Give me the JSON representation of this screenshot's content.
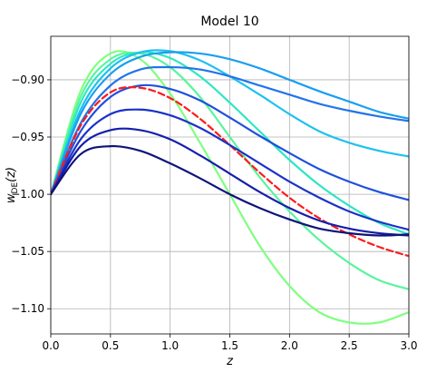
{
  "chart_data": {
    "type": "line",
    "title": "Model 10",
    "xlabel": "z",
    "ylabel_main": "w",
    "ylabel_sub": "DE",
    "ylabel_arg": "(z)",
    "xlim": [
      0.0,
      3.0
    ],
    "ylim": [
      -1.122,
      -0.862
    ],
    "grid": true,
    "x_ticks": [
      0.0,
      0.5,
      1.0,
      1.5,
      2.0,
      2.5,
      3.0
    ],
    "x_tick_labels": [
      "0.0",
      "0.5",
      "1.0",
      "1.5",
      "2.0",
      "2.5",
      "3.0"
    ],
    "y_ticks": [
      -0.9,
      -0.95,
      -1.0,
      -1.05,
      -1.1
    ],
    "y_tick_labels": [
      "−0.90",
      "−0.95",
      "−1.00",
      "−1.05",
      "−1.10"
    ],
    "x": [
      0.0,
      0.25,
      0.5,
      0.75,
      1.0,
      1.25,
      1.5,
      1.75,
      2.0,
      2.25,
      2.5,
      2.75,
      3.0
    ],
    "series": [
      {
        "color": "#7fff7f",
        "style": "solid",
        "values": [
          -1.0,
          -0.91,
          -0.877,
          -0.882,
          -0.912,
          -0.955,
          -1.0,
          -1.045,
          -1.08,
          -1.103,
          -1.112,
          -1.112,
          -1.103
        ]
      },
      {
        "color": "#58f59d",
        "style": "solid",
        "values": [
          -1.0,
          -0.915,
          -0.882,
          -0.877,
          -0.889,
          -0.915,
          -0.95,
          -0.985,
          -1.015,
          -1.04,
          -1.06,
          -1.075,
          -1.083
        ]
      },
      {
        "color": "#2ee6c4",
        "style": "solid",
        "values": [
          -1.0,
          -0.92,
          -0.886,
          -0.876,
          -0.881,
          -0.897,
          -0.92,
          -0.945,
          -0.97,
          -0.992,
          -1.01,
          -1.025,
          -1.035
        ]
      },
      {
        "color": "#1ec0f0",
        "style": "solid",
        "values": [
          -1.0,
          -0.926,
          -0.89,
          -0.876,
          -0.875,
          -0.883,
          -0.897,
          -0.913,
          -0.93,
          -0.945,
          -0.955,
          -0.962,
          -0.967
        ]
      },
      {
        "color": "#1a9ef0",
        "style": "solid",
        "values": [
          -1.0,
          -0.93,
          -0.895,
          -0.88,
          -0.876,
          -0.877,
          -0.882,
          -0.89,
          -0.9,
          -0.91,
          -0.919,
          -0.928,
          -0.934
        ]
      },
      {
        "color": "#2274ea",
        "style": "solid",
        "values": [
          -1.0,
          -0.938,
          -0.905,
          -0.891,
          -0.889,
          -0.891,
          -0.897,
          -0.905,
          -0.913,
          -0.921,
          -0.927,
          -0.932,
          -0.936
        ]
      },
      {
        "color": "#1e50dc",
        "style": "solid",
        "values": [
          -1.0,
          -0.945,
          -0.915,
          -0.905,
          -0.908,
          -0.918,
          -0.933,
          -0.949,
          -0.964,
          -0.978,
          -0.989,
          -0.998,
          -1.005
        ]
      },
      {
        "color": "#ff1a1a",
        "style": "dashed",
        "values": [
          -1.0,
          -0.94,
          -0.911,
          -0.907,
          -0.916,
          -0.934,
          -0.957,
          -0.981,
          -1.003,
          -1.021,
          -1.035,
          -1.046,
          -1.054
        ]
      },
      {
        "color": "#1a32c8",
        "style": "solid",
        "values": [
          -1.0,
          -0.952,
          -0.93,
          -0.926,
          -0.931,
          -0.942,
          -0.957,
          -0.973,
          -0.989,
          -1.003,
          -1.015,
          -1.024,
          -1.031
        ]
      },
      {
        "color": "#141eaa",
        "style": "solid",
        "values": [
          -1.0,
          -0.958,
          -0.944,
          -0.944,
          -0.952,
          -0.966,
          -0.982,
          -0.998,
          -1.012,
          -1.023,
          -1.03,
          -1.034,
          -1.036
        ]
      },
      {
        "color": "#0f1477",
        "style": "solid",
        "values": [
          -1.0,
          -0.965,
          -0.958,
          -0.962,
          -0.973,
          -0.986,
          -1.0,
          -1.012,
          -1.022,
          -1.03,
          -1.034,
          -1.036,
          -1.035
        ]
      }
    ]
  }
}
